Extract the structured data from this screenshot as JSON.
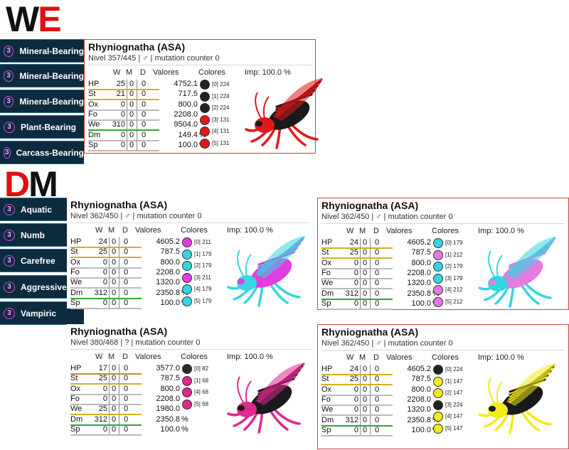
{
  "sections": {
    "we_heading": {
      "first": "W",
      "second": "E"
    },
    "dm_heading": {
      "first": "D",
      "second": "M"
    }
  },
  "colors": {
    "accent_red": "#e01010",
    "trait_bg": "#0d2b3f",
    "trait_circle": "#d14be0"
  },
  "we_traits": [
    {
      "num": "3",
      "label": "Mineral-Bearing"
    },
    {
      "num": "3",
      "label": "Mineral-Bearing"
    },
    {
      "num": "3",
      "label": "Mineral-Bearing"
    },
    {
      "num": "3",
      "label": "Plant-Bearing"
    },
    {
      "num": "3",
      "label": "Carcass-Bearing"
    }
  ],
  "dm_traits": [
    {
      "num": "3",
      "label": "Aquatic"
    },
    {
      "num": "3",
      "label": "Numb"
    },
    {
      "num": "3",
      "label": "Carefree"
    },
    {
      "num": "3",
      "label": "Aggressive"
    },
    {
      "num": "3",
      "label": "Vampiric"
    }
  ],
  "cards": [
    {
      "title": "Rhyniognatha (ASA)",
      "subtitle": "Nivel 357/445 | ♂ | mutation counter 0",
      "headers": {
        "w": "W",
        "m": "M",
        "d": "D",
        "valores": "Valores",
        "colores": "Colores",
        "imp": "Imp: 100.0 %"
      },
      "stats": [
        {
          "name": "HP",
          "w": "25",
          "m": "0",
          "d": "0",
          "val": "4752.1",
          "pct": "",
          "ul": "#d4b020"
        },
        {
          "name": "St",
          "w": "21",
          "m": "0",
          "d": "0",
          "val": "717.5",
          "pct": "",
          "ul": "#d4b020"
        },
        {
          "name": "Ox",
          "w": "0",
          "m": "0",
          "d": "0",
          "val": "800.0",
          "pct": "",
          "ul": "#bbbbbb"
        },
        {
          "name": "Fo",
          "w": "0",
          "m": "0",
          "d": "0",
          "val": "2208.0",
          "pct": "",
          "ul": "#bbbbbb"
        },
        {
          "name": "We",
          "w": "310",
          "m": "0",
          "d": "0",
          "val": "9504.0",
          "pct": "",
          "ul": "#2eaa2e"
        },
        {
          "name": "Dm",
          "w": "0",
          "m": "0",
          "d": "0",
          "val": "149.4",
          "pct": "%",
          "ul": "#bbbbbb"
        },
        {
          "name": "Sp",
          "w": "0",
          "m": "0",
          "d": "0",
          "val": "100.0",
          "pct": "%",
          "ul": "#bbbbbb"
        }
      ],
      "swatches": [
        {
          "label": "[0] 224",
          "color": "#222222"
        },
        {
          "label": "[1] 224",
          "color": "#222222"
        },
        {
          "label": "[2] 224",
          "color": "#222222"
        },
        {
          "label": "[3] 131",
          "color": "#e01818"
        },
        {
          "label": "[4] 131",
          "color": "#e01818"
        },
        {
          "label": "[5] 131",
          "color": "#e01818"
        }
      ],
      "creature": {
        "primary": "#e01818",
        "secondary": "#1a1a1a"
      }
    },
    {
      "title": "Rhyniognatha (ASA)",
      "subtitle": "Nivel 362/450 | ♂ | mutation counter 0",
      "headers": {
        "w": "W",
        "m": "M",
        "d": "D",
        "valores": "Valores",
        "colores": "Colores",
        "imp": "Imp: 100.0 %"
      },
      "stats": [
        {
          "name": "HP",
          "w": "24",
          "m": "0",
          "d": "0",
          "val": "4605.2",
          "pct": "",
          "ul": "#d4b020"
        },
        {
          "name": "St",
          "w": "25",
          "m": "0",
          "d": "0",
          "val": "787.5",
          "pct": "",
          "ul": "#d4b020"
        },
        {
          "name": "Ox",
          "w": "0",
          "m": "0",
          "d": "0",
          "val": "800.0",
          "pct": "",
          "ul": "#bbbbbb"
        },
        {
          "name": "Fo",
          "w": "0",
          "m": "0",
          "d": "0",
          "val": "2208.0",
          "pct": "",
          "ul": "#bbbbbb"
        },
        {
          "name": "We",
          "w": "0",
          "m": "0",
          "d": "0",
          "val": "1320.0",
          "pct": "",
          "ul": "#bbbbbb"
        },
        {
          "name": "Dm",
          "w": "312",
          "m": "0",
          "d": "0",
          "val": "2350.8",
          "pct": "%",
          "ul": "#2eaa2e"
        },
        {
          "name": "Sp",
          "w": "0",
          "m": "0",
          "d": "0",
          "val": "100.0",
          "pct": "%",
          "ul": "#bbbbbb"
        }
      ],
      "swatches": [
        {
          "label": "[0] 211",
          "color": "#e23de0"
        },
        {
          "label": "[1] 179",
          "color": "#35d6e0"
        },
        {
          "label": "[2] 179",
          "color": "#35d6e0"
        },
        {
          "label": "[3] 211",
          "color": "#e23de0"
        },
        {
          "label": "[4] 179",
          "color": "#35d6e0"
        },
        {
          "label": "[5] 179",
          "color": "#35d6e0"
        }
      ],
      "creature": {
        "primary": "#35d6e0",
        "secondary": "#e23de0"
      }
    },
    {
      "title": "Rhyniognatha (ASA)",
      "subtitle": "Nivel 362/450 | ♂ | mutation counter 0",
      "headers": {
        "w": "W",
        "m": "M",
        "d": "D",
        "valores": "Valores",
        "colores": "Colores",
        "imp": "Imp: 100.0 %"
      },
      "stats": [
        {
          "name": "HP",
          "w": "24",
          "m": "0",
          "d": "0",
          "val": "4605.2",
          "pct": "",
          "ul": "#d4b020"
        },
        {
          "name": "St",
          "w": "25",
          "m": "0",
          "d": "0",
          "val": "787.5",
          "pct": "",
          "ul": "#d4b020"
        },
        {
          "name": "Ox",
          "w": "0",
          "m": "0",
          "d": "0",
          "val": "800.0",
          "pct": "",
          "ul": "#bbbbbb"
        },
        {
          "name": "Fo",
          "w": "0",
          "m": "0",
          "d": "0",
          "val": "2208.0",
          "pct": "",
          "ul": "#bbbbbb"
        },
        {
          "name": "We",
          "w": "0",
          "m": "0",
          "d": "0",
          "val": "1320.0",
          "pct": "",
          "ul": "#bbbbbb"
        },
        {
          "name": "Dm",
          "w": "312",
          "m": "0",
          "d": "0",
          "val": "2350.8",
          "pct": "%",
          "ul": "#2eaa2e"
        },
        {
          "name": "Sp",
          "w": "0",
          "m": "0",
          "d": "0",
          "val": "100.0",
          "pct": "%",
          "ul": "#bbbbbb"
        }
      ],
      "swatches": [
        {
          "label": "[0] 179",
          "color": "#35d6e0"
        },
        {
          "label": "[1] 212",
          "color": "#e57be0"
        },
        {
          "label": "[2] 179",
          "color": "#35d6e0"
        },
        {
          "label": "[3] 179",
          "color": "#35d6e0"
        },
        {
          "label": "[4] 212",
          "color": "#e57be0"
        },
        {
          "label": "[5] 212",
          "color": "#e57be0"
        }
      ],
      "creature": {
        "primary": "#35d6e0",
        "secondary": "#e57be0"
      }
    },
    {
      "title": "Rhyniognatha (ASA)",
      "subtitle": "Nivel 380/468 | ? | mutation counter 0",
      "headers": {
        "w": "W",
        "m": "M",
        "d": "D",
        "valores": "Valores",
        "colores": "Colores",
        "imp": "Imp: 100.0 %"
      },
      "stats": [
        {
          "name": "HP",
          "w": "17",
          "m": "0",
          "d": "0",
          "val": "3577.0",
          "pct": "",
          "ul": "#d48820"
        },
        {
          "name": "St",
          "w": "25",
          "m": "0",
          "d": "0",
          "val": "787.5",
          "pct": "",
          "ul": "#d4b020"
        },
        {
          "name": "Ox",
          "w": "0",
          "m": "0",
          "d": "0",
          "val": "800.0",
          "pct": "",
          "ul": "#bbbbbb"
        },
        {
          "name": "Fo",
          "w": "0",
          "m": "0",
          "d": "0",
          "val": "2208.0",
          "pct": "",
          "ul": "#bbbbbb"
        },
        {
          "name": "We",
          "w": "25",
          "m": "0",
          "d": "0",
          "val": "1980.0",
          "pct": "",
          "ul": "#d4b020"
        },
        {
          "name": "Dm",
          "w": "312",
          "m": "0",
          "d": "0",
          "val": "2350.8",
          "pct": "%",
          "ul": "#2eaa2e"
        },
        {
          "name": "Sp",
          "w": "0",
          "m": "0",
          "d": "0",
          "val": "100.0",
          "pct": "%",
          "ul": "#bbbbbb"
        }
      ],
      "swatches": [
        {
          "label": "[0] 82",
          "color": "#2a2a2a"
        },
        {
          "label": "[1] 68",
          "color": "#e02890"
        },
        {
          "label": "[4] 68",
          "color": "#e02890"
        },
        {
          "label": "[5] 68",
          "color": "#e02890"
        }
      ],
      "creature": {
        "primary": "#e02890",
        "secondary": "#1a1a1a"
      }
    },
    {
      "title": "Rhyniognatha (ASA)",
      "subtitle": "Nivel 362/450 | ♂ | mutation counter 0",
      "headers": {
        "w": "W",
        "m": "M",
        "d": "D",
        "valores": "Valores",
        "colores": "Colores",
        "imp": "Imp: 100.0 %"
      },
      "stats": [
        {
          "name": "HP",
          "w": "24",
          "m": "0",
          "d": "0",
          "val": "4605.2",
          "pct": "",
          "ul": "#d4b020"
        },
        {
          "name": "St",
          "w": "25",
          "m": "0",
          "d": "0",
          "val": "787.5",
          "pct": "",
          "ul": "#d4b020"
        },
        {
          "name": "Ox",
          "w": "0",
          "m": "0",
          "d": "0",
          "val": "800.0",
          "pct": "",
          "ul": "#bbbbbb"
        },
        {
          "name": "Fo",
          "w": "0",
          "m": "0",
          "d": "0",
          "val": "2208.0",
          "pct": "",
          "ul": "#bbbbbb"
        },
        {
          "name": "We",
          "w": "0",
          "m": "0",
          "d": "0",
          "val": "1320.0",
          "pct": "",
          "ul": "#bbbbbb"
        },
        {
          "name": "Dm",
          "w": "312",
          "m": "0",
          "d": "0",
          "val": "2350.8",
          "pct": "%",
          "ul": "#2eaa2e"
        },
        {
          "name": "Sp",
          "w": "0",
          "m": "0",
          "d": "0",
          "val": "100.0",
          "pct": "%",
          "ul": "#bbbbbb"
        }
      ],
      "swatches": [
        {
          "label": "[0] 224",
          "color": "#222222"
        },
        {
          "label": "[1] 147",
          "color": "#f2ea1a"
        },
        {
          "label": "[2] 147",
          "color": "#f2ea1a"
        },
        {
          "label": "[3] 224",
          "color": "#222222"
        },
        {
          "label": "[4] 147",
          "color": "#f2ea1a"
        },
        {
          "label": "[5] 147",
          "color": "#f2ea1a"
        }
      ],
      "creature": {
        "primary": "#f2ea1a",
        "secondary": "#1a1a1a"
      }
    }
  ]
}
